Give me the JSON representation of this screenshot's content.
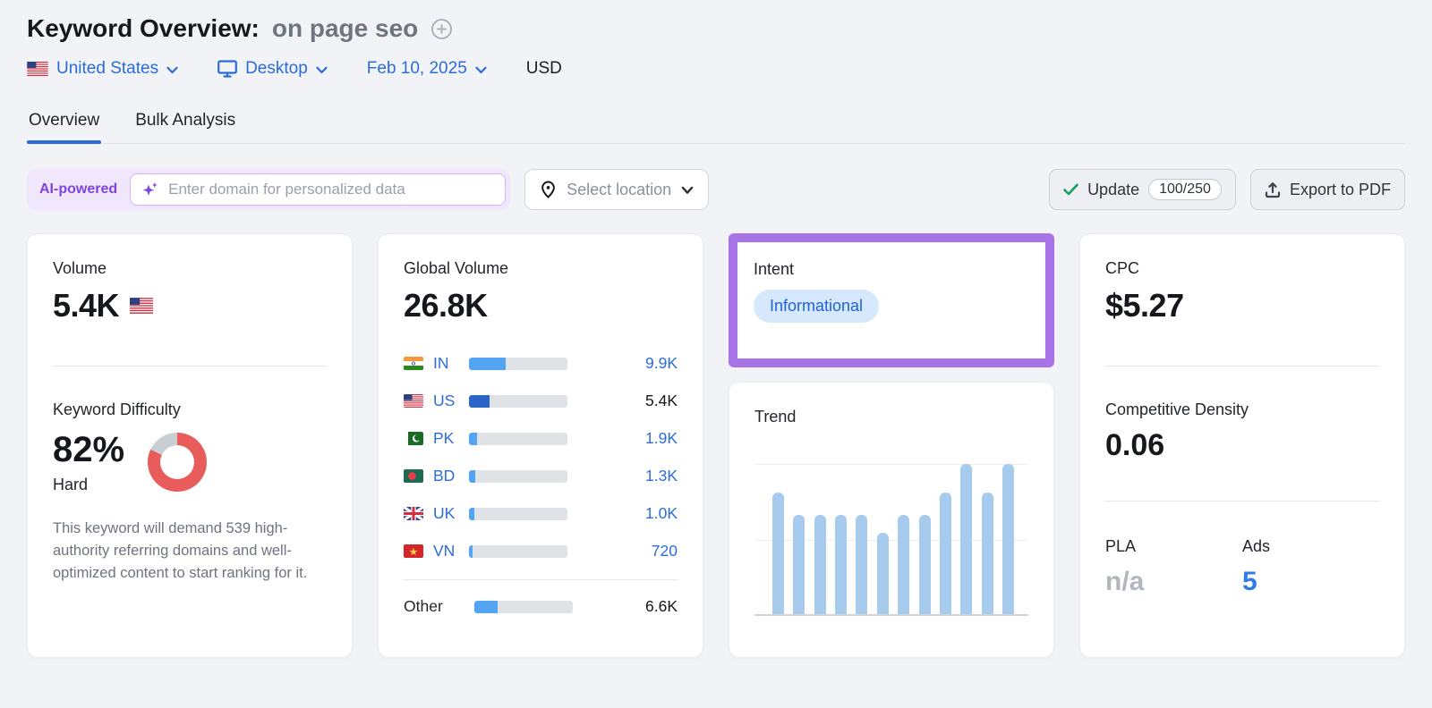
{
  "header": {
    "title": "Keyword Overview:",
    "keyword": "on page seo",
    "filters": {
      "country": "United States",
      "device": "Desktop",
      "date": "Feb 10, 2025",
      "currency": "USD"
    },
    "tabs": [
      {
        "label": "Overview",
        "active": true
      },
      {
        "label": "Bulk Analysis",
        "active": false
      }
    ]
  },
  "toolbar": {
    "ai_badge": "AI-powered",
    "domain_input_placeholder": "Enter domain for personalized data",
    "domain_input_value": "",
    "select_location_label": "Select location",
    "update_label": "Update",
    "update_count": "100/250",
    "export_label": "Export to PDF"
  },
  "cards": {
    "volume": {
      "title": "Volume",
      "value": "5.4K",
      "flag": "us-flag"
    },
    "keyword_difficulty": {
      "title": "Keyword Difficulty",
      "value": "82%",
      "percent": 82,
      "level": "Hard",
      "description": "This keyword will demand 539 high-authority referring domains and well-optimized content to start ranking for it."
    },
    "global_volume": {
      "title": "Global Volume",
      "value": "26.8K",
      "countries": [
        {
          "code": "IN",
          "value": "9.9K",
          "share": 37,
          "fill": "#54a5f1"
        },
        {
          "code": "US",
          "value": "5.4K",
          "share": 21,
          "fill": "#2a65c8"
        },
        {
          "code": "PK",
          "value": "1.9K",
          "share": 8,
          "fill": "#54a5f1"
        },
        {
          "code": "BD",
          "value": "1.3K",
          "share": 6,
          "fill": "#54a5f1"
        },
        {
          "code": "UK",
          "value": "1.0K",
          "share": 5,
          "fill": "#54a5f1"
        },
        {
          "code": "VN",
          "value": "720",
          "share": 4,
          "fill": "#54a5f1"
        }
      ],
      "other": {
        "label": "Other",
        "value": "6.6K",
        "share": 24,
        "fill": "#54a5f1"
      }
    },
    "intent": {
      "title": "Intent",
      "badge": "Informational",
      "highlighted": true
    },
    "trend": {
      "title": "Trend"
    },
    "cpc": {
      "title": "CPC",
      "value": "$5.27"
    },
    "competitive_density": {
      "title": "Competitive Density",
      "value": "0.06"
    },
    "pla": {
      "title": "PLA",
      "value": "n/a"
    },
    "ads": {
      "title": "Ads",
      "value": "5"
    }
  },
  "chart_data": [
    {
      "type": "bar",
      "title": "Trend",
      "values": [
        81,
        66,
        66,
        66,
        66,
        54,
        66,
        66,
        81,
        100,
        81,
        100
      ],
      "values_unit": "percent of top gridline (no axis labels shown)",
      "categories": [
        "",
        "",
        "",
        "",
        "",
        "",
        "",
        "",
        "",
        "",
        "",
        ""
      ],
      "bar_color": "#a7cbec",
      "grid": "two light horizontal gridlines plus darker baseline, no axis labels"
    },
    {
      "type": "pie",
      "title": "Keyword Difficulty donut",
      "labels": [
        "difficulty",
        "remainder"
      ],
      "values": [
        82,
        18
      ],
      "colors": [
        "#e85c5c",
        "#c9ced4"
      ],
      "center_text": "82%"
    }
  ],
  "colors": {
    "accent_blue": "#2b6cd9",
    "bar_light_blue": "#54a5f1",
    "bar_dark_blue": "#2a65c8",
    "trend_bar": "#a7cbec",
    "kd_red": "#e85c5c",
    "donut_gray": "#c9ced4",
    "highlight_purple": "#a873e6",
    "intent_badge_bg": "#d6e8fb",
    "intent_badge_text": "#1f62d9",
    "ads_blue": "#2e7ce8",
    "pla_gray": "#b2b6be",
    "green_check": "#18a15d",
    "ai_purple": "#7d44e0",
    "page_bg": "#f1f3f6"
  }
}
